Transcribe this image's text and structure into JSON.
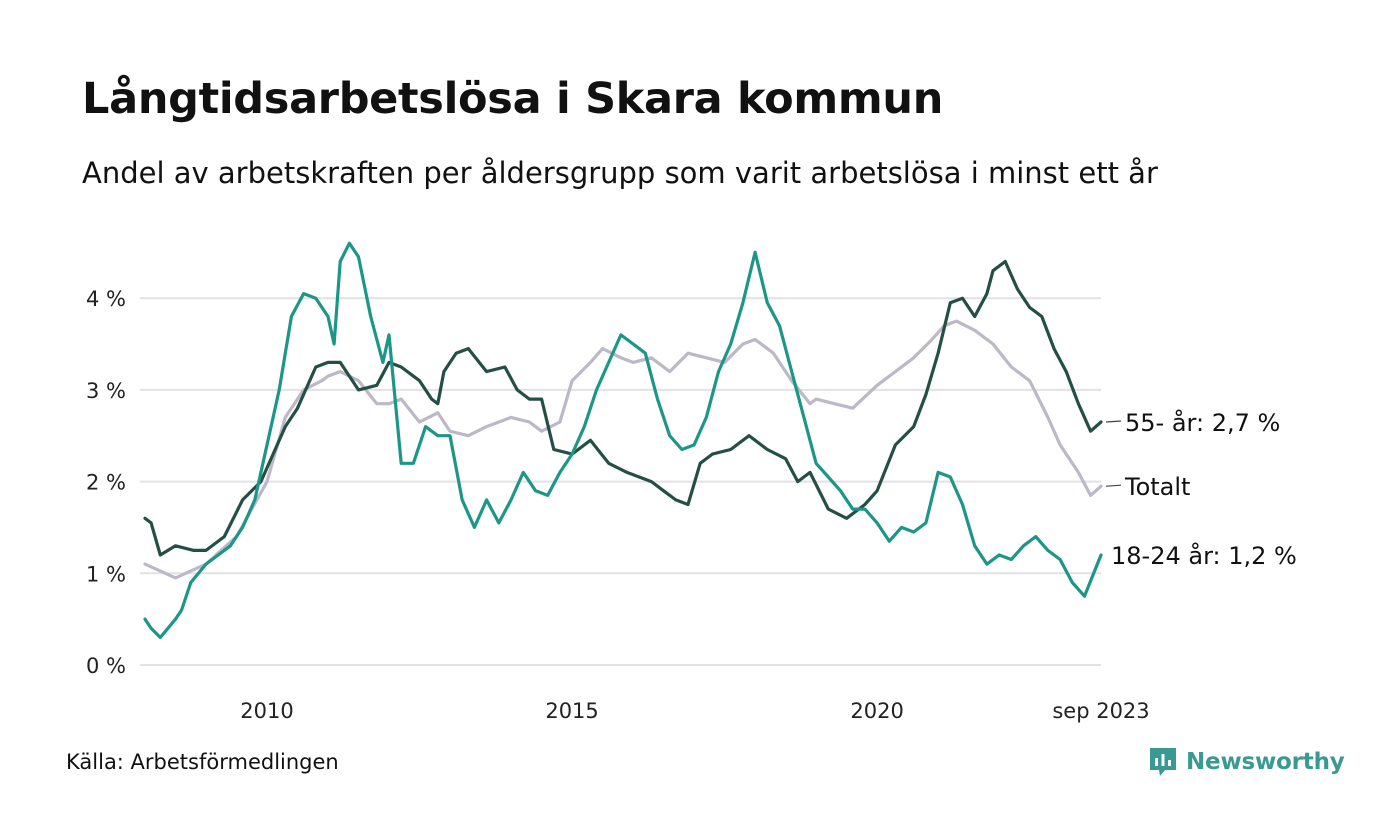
{
  "chart_data": {
    "type": "line",
    "title": "Långtidsarbetslösa i Skara kommun",
    "subtitle": "Andel av arbetskraften per åldersgrupp som varit arbetslösa i minst ett år",
    "y_ticks": [
      {
        "value": 0,
        "label": "0 %"
      },
      {
        "value": 1,
        "label": "1 %"
      },
      {
        "value": 2,
        "label": "2 %"
      },
      {
        "value": 3,
        "label": "3 %"
      },
      {
        "value": 4,
        "label": "4 %"
      }
    ],
    "x_ticks": [
      {
        "value": 2010,
        "label": "2010"
      },
      {
        "value": 2015,
        "label": "2015"
      },
      {
        "value": 2020,
        "label": "2020"
      },
      {
        "value": 2023.67,
        "label": "sep 2023"
      }
    ],
    "xlim": [
      2008.0,
      2023.67
    ],
    "ylim": [
      0,
      4.7
    ],
    "grid": true,
    "series": [
      {
        "name": "Totalt",
        "label": "Totalt",
        "color": "#bcb8c8",
        "x": [
          2008.0,
          2008.5,
          2009.0,
          2009.5,
          2010.0,
          2010.3,
          2010.6,
          2010.9,
          2011.0,
          2011.2,
          2011.5,
          2011.8,
          2012.0,
          2012.2,
          2012.5,
          2012.8,
          2013.0,
          2013.3,
          2013.6,
          2014.0,
          2014.3,
          2014.5,
          2014.8,
          2015.0,
          2015.3,
          2015.5,
          2015.8,
          2016.0,
          2016.3,
          2016.6,
          2016.9,
          2017.2,
          2017.5,
          2017.8,
          2018.0,
          2018.3,
          2018.6,
          2018.9,
          2019.0,
          2019.3,
          2019.6,
          2020.0,
          2020.3,
          2020.6,
          2020.9,
          2021.1,
          2021.3,
          2021.6,
          2021.9,
          2022.2,
          2022.5,
          2022.8,
          2023.0,
          2023.3,
          2023.5,
          2023.67
        ],
        "values": [
          1.1,
          0.95,
          1.1,
          1.4,
          2.0,
          2.7,
          3.0,
          3.1,
          3.15,
          3.2,
          3.1,
          2.85,
          2.85,
          2.9,
          2.65,
          2.75,
          2.55,
          2.5,
          2.6,
          2.7,
          2.65,
          2.55,
          2.65,
          3.1,
          3.3,
          3.45,
          3.35,
          3.3,
          3.35,
          3.2,
          3.4,
          3.35,
          3.3,
          3.5,
          3.55,
          3.4,
          3.1,
          2.85,
          2.9,
          2.85,
          2.8,
          3.05,
          3.2,
          3.35,
          3.55,
          3.7,
          3.75,
          3.65,
          3.5,
          3.25,
          3.1,
          2.7,
          2.4,
          2.1,
          1.85,
          1.95
        ]
      },
      {
        "name": "55- år",
        "label": "55- år: 2,7 %",
        "color": "#244f45",
        "x": [
          2008.0,
          2008.1,
          2008.25,
          2008.5,
          2008.8,
          2009.0,
          2009.3,
          2009.6,
          2009.9,
          2010.1,
          2010.3,
          2010.5,
          2010.8,
          2011.0,
          2011.2,
          2011.5,
          2011.8,
          2012.0,
          2012.2,
          2012.5,
          2012.7,
          2012.8,
          2012.9,
          2013.1,
          2013.3,
          2013.6,
          2013.9,
          2014.1,
          2014.3,
          2014.5,
          2014.7,
          2015.0,
          2015.3,
          2015.6,
          2015.9,
          2016.1,
          2016.3,
          2016.5,
          2016.7,
          2016.9,
          2017.1,
          2017.3,
          2017.6,
          2017.9,
          2018.2,
          2018.5,
          2018.7,
          2018.9,
          2019.2,
          2019.5,
          2019.8,
          2020.0,
          2020.3,
          2020.6,
          2020.8,
          2021.0,
          2021.2,
          2021.4,
          2021.6,
          2021.8,
          2021.9,
          2022.1,
          2022.3,
          2022.5,
          2022.7,
          2022.9,
          2023.1,
          2023.3,
          2023.5,
          2023.67
        ],
        "values": [
          1.6,
          1.55,
          1.2,
          1.3,
          1.25,
          1.25,
          1.4,
          1.8,
          2.0,
          2.3,
          2.6,
          2.8,
          3.25,
          3.3,
          3.3,
          3.0,
          3.05,
          3.3,
          3.25,
          3.1,
          2.9,
          2.85,
          3.2,
          3.4,
          3.45,
          3.2,
          3.25,
          3.0,
          2.9,
          2.9,
          2.35,
          2.3,
          2.45,
          2.2,
          2.1,
          2.05,
          2.0,
          1.9,
          1.8,
          1.75,
          2.2,
          2.3,
          2.35,
          2.5,
          2.35,
          2.25,
          2.0,
          2.1,
          1.7,
          1.6,
          1.75,
          1.9,
          2.4,
          2.6,
          2.95,
          3.4,
          3.95,
          4.0,
          3.8,
          4.05,
          4.3,
          4.4,
          4.1,
          3.9,
          3.8,
          3.45,
          3.2,
          2.85,
          2.55,
          2.65
        ]
      },
      {
        "name": "18-24 år",
        "label": "18-24 år: 1,2 %",
        "color": "#1c9687",
        "x": [
          2008.0,
          2008.1,
          2008.25,
          2008.5,
          2008.6,
          2008.75,
          2009.0,
          2009.2,
          2009.4,
          2009.6,
          2009.8,
          2010.0,
          2010.2,
          2010.4,
          2010.6,
          2010.8,
          2011.0,
          2011.1,
          2011.2,
          2011.35,
          2011.5,
          2011.7,
          2011.9,
          2012.0,
          2012.2,
          2012.4,
          2012.6,
          2012.8,
          2013.0,
          2013.2,
          2013.4,
          2013.6,
          2013.8,
          2014.0,
          2014.2,
          2014.4,
          2014.6,
          2014.8,
          2015.0,
          2015.2,
          2015.4,
          2015.6,
          2015.8,
          2016.0,
          2016.2,
          2016.4,
          2016.6,
          2016.8,
          2017.0,
          2017.2,
          2017.4,
          2017.6,
          2017.8,
          2018.0,
          2018.2,
          2018.4,
          2018.6,
          2018.8,
          2019.0,
          2019.2,
          2019.4,
          2019.6,
          2019.8,
          2020.0,
          2020.2,
          2020.4,
          2020.6,
          2020.8,
          2021.0,
          2021.2,
          2021.4,
          2021.6,
          2021.8,
          2022.0,
          2022.2,
          2022.4,
          2022.6,
          2022.8,
          2023.0,
          2023.2,
          2023.4,
          2023.67
        ],
        "values": [
          0.5,
          0.4,
          0.3,
          0.5,
          0.6,
          0.9,
          1.1,
          1.2,
          1.3,
          1.5,
          1.8,
          2.4,
          3.0,
          3.8,
          4.05,
          4.0,
          3.8,
          3.5,
          4.4,
          4.6,
          4.45,
          3.8,
          3.3,
          3.6,
          2.2,
          2.2,
          2.6,
          2.5,
          2.5,
          1.8,
          1.5,
          1.8,
          1.55,
          1.8,
          2.1,
          1.9,
          1.85,
          2.1,
          2.3,
          2.6,
          3.0,
          3.3,
          3.6,
          3.5,
          3.4,
          2.9,
          2.5,
          2.35,
          2.4,
          2.7,
          3.2,
          3.5,
          3.95,
          4.5,
          3.95,
          3.7,
          3.2,
          2.7,
          2.2,
          2.05,
          1.9,
          1.7,
          1.7,
          1.55,
          1.35,
          1.5,
          1.45,
          1.55,
          2.1,
          2.05,
          1.75,
          1.3,
          1.1,
          1.2,
          1.15,
          1.3,
          1.4,
          1.25,
          1.15,
          0.9,
          0.75,
          1.2
        ]
      }
    ]
  },
  "source": "Källa: Arbetsförmedlingen",
  "brand": {
    "name": "Newsworthy",
    "icon": "newsworthy-logo-icon",
    "color": "#3a9a92"
  }
}
